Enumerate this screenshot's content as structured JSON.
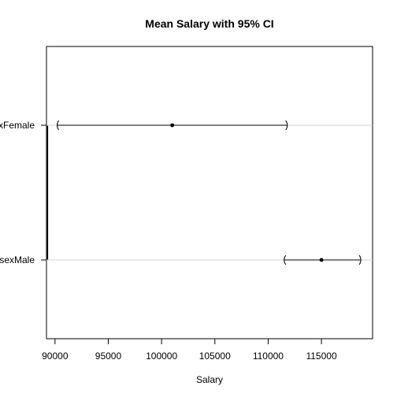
{
  "chart_data": {
    "type": "dot-errorbar",
    "title": "Mean Salary with 95% CI",
    "xlabel": "Salary",
    "ylabel": "",
    "xlim": [
      89200,
      119800
    ],
    "x_ticks": [
      90000,
      95000,
      100000,
      105000,
      110000,
      115000
    ],
    "x_tick_labels": [
      "90000",
      "95000",
      "100000",
      "105000",
      "110000",
      "115000"
    ],
    "reference_x": 89300,
    "grid": false,
    "categories": [
      {
        "label": "sexFemale",
        "display_label": "xFemale",
        "mean": 101000,
        "lower": 90200,
        "upper": 111800
      },
      {
        "label": "sexMale",
        "display_label": "sexMale",
        "mean": 115000,
        "lower": 111500,
        "upper": 118700
      }
    ]
  }
}
